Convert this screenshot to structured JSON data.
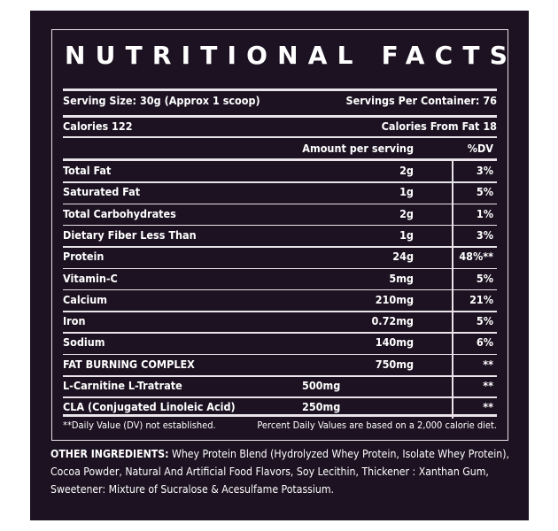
{
  "title": "NUTRITIONAL FACTS",
  "serving_size": "Serving Size: 30g (Approx 1 scoop)",
  "servings_per_container": "Servings Per Container: 76",
  "calories": "Calories 122",
  "calories_from_fat": "Calories From Fat 18",
  "amount_header": "Amount per serving",
  "dv_header": "%DV",
  "nutrients": [
    {
      "name": "Total Fat",
      "amount": "2g",
      "dv": "3%"
    },
    {
      "name": "Saturated Fat",
      "amount": "1g",
      "dv": "5%"
    },
    {
      "name": "Total Carbohydrates",
      "amount": "2g",
      "dv": "1%"
    },
    {
      "name": "Dietary Fiber Less Than",
      "amount": "1g",
      "dv": "3%"
    },
    {
      "name": "Protein",
      "amount": "24g",
      "dv": "48%**"
    },
    {
      "name": "Vitamin-C",
      "amount": "5mg",
      "dv": "5%"
    },
    {
      "name": "Calcium",
      "amount": "210mg",
      "dv": "21%"
    },
    {
      "name": "Iron",
      "amount": "0.72mg",
      "dv": "5%"
    },
    {
      "name": "Sodium",
      "amount": "140mg",
      "dv": "6%"
    },
    {
      "name": "FAT BURNING COMPLEX",
      "amount": "750mg",
      "dv": "**"
    }
  ],
  "complex": [
    {
      "name": "L-Carnitine L-Tratrate",
      "amount": "500mg",
      "dv": "**"
    },
    {
      "name": "CLA (Conjugated Linoleic Acid)",
      "amount": "250mg",
      "dv": "**"
    }
  ],
  "footnote_left": "**Daily Value (DV) not established.",
  "footnote_right": "Percent Daily Values are based on a 2,000 calorie diet.",
  "ingredients_label": "OTHER INGREDIENTS:",
  "ingredients_line1": "Whey Protein Blend (Hydrolyzed Whey Protein, Isolate Whey Protein),",
  "ingredients_line2": "Cocoa Powder, Natural And Artificial Food Flavors, Soy Lecithin, Thickener : Xanthan Gum,",
  "ingredients_line3": "Sweetener: Mixture of Sucralose & Acesulfame Potassium."
}
